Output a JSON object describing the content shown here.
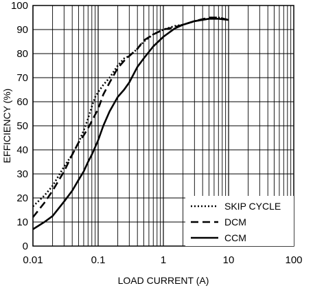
{
  "chart_data": {
    "type": "line",
    "title": "",
    "xlabel": "LOAD CURRENT (A)",
    "ylabel": "EFFICIENCY (%)",
    "xscale": "log",
    "xlim": [
      0.01,
      100
    ],
    "ylim": [
      0,
      100
    ],
    "x_ticks": [
      "0.01",
      "0.1",
      "1",
      "10",
      "100"
    ],
    "y_ticks": [
      "0",
      "10",
      "20",
      "30",
      "40",
      "50",
      "60",
      "70",
      "80",
      "90",
      "100"
    ],
    "grid": true,
    "legend_position": "bottom-right",
    "series": [
      {
        "name": "SKIP CYCLE",
        "style": "dotted",
        "color": "#000000",
        "x": [
          0.01,
          0.015,
          0.02,
          0.03,
          0.04,
          0.05,
          0.06,
          0.07,
          0.08,
          0.09,
          0.1,
          0.12,
          0.15,
          0.2,
          0.25,
          0.3,
          0.4,
          0.5,
          0.7,
          1,
          1.5,
          2,
          3,
          5,
          7,
          10
        ],
        "y": [
          16.5,
          21,
          25,
          33,
          38,
          43,
          48,
          53,
          58,
          62,
          64,
          67,
          70,
          75,
          78,
          79,
          82,
          85,
          88,
          90,
          91.5,
          92,
          93.5,
          94.5,
          95,
          94
        ]
      },
      {
        "name": "DCM",
        "style": "dashed",
        "color": "#000000",
        "x": [
          0.01,
          0.015,
          0.02,
          0.03,
          0.04,
          0.05,
          0.06,
          0.07,
          0.08,
          0.1,
          0.12,
          0.15,
          0.2,
          0.25,
          0.3,
          0.4,
          0.5,
          0.7,
          1,
          1.5,
          2,
          3,
          5,
          7,
          10
        ],
        "y": [
          12,
          18,
          23,
          31,
          38,
          43,
          46,
          49,
          52,
          57,
          63,
          68,
          74,
          77,
          79,
          82,
          85.5,
          88,
          90,
          91,
          92,
          93.5,
          95,
          95,
          94
        ]
      },
      {
        "name": "CCM",
        "style": "solid",
        "color": "#000000",
        "x": [
          0.01,
          0.015,
          0.02,
          0.03,
          0.04,
          0.05,
          0.06,
          0.07,
          0.08,
          0.1,
          0.12,
          0.15,
          0.2,
          0.25,
          0.3,
          0.4,
          0.5,
          0.7,
          1,
          1.5,
          2,
          3,
          5,
          7,
          10
        ],
        "y": [
          7,
          10,
          12.5,
          18.5,
          23,
          27.5,
          31,
          35,
          38,
          44,
          50,
          56,
          62,
          65,
          68,
          74.5,
          78,
          83,
          87,
          90.5,
          92,
          93.5,
          94.5,
          94.5,
          94
        ]
      }
    ]
  }
}
